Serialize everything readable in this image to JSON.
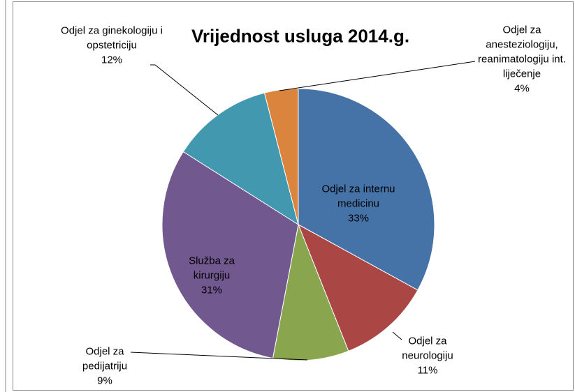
{
  "chart_data": {
    "type": "pie",
    "title": "Vrijednost usluga 2014.g.",
    "categories": [
      "Odjel za internu medicinu",
      "Odjel za neurologiju",
      "Odjel za pedijatriju",
      "Služba za kirurgiju",
      "Odjel za ginekologiju i opstetriciju",
      "Odjel za anesteziologiju, reanimatologiju int. liječenje"
    ],
    "values": [
      33,
      11,
      9,
      31,
      12,
      4
    ],
    "value_labels": [
      "33%",
      "11%",
      "9%",
      "31%",
      "12%",
      "4%"
    ],
    "colors": [
      "#4572a7",
      "#aa4643",
      "#89a54e",
      "#71588f",
      "#4198af",
      "#db843d"
    ]
  }
}
